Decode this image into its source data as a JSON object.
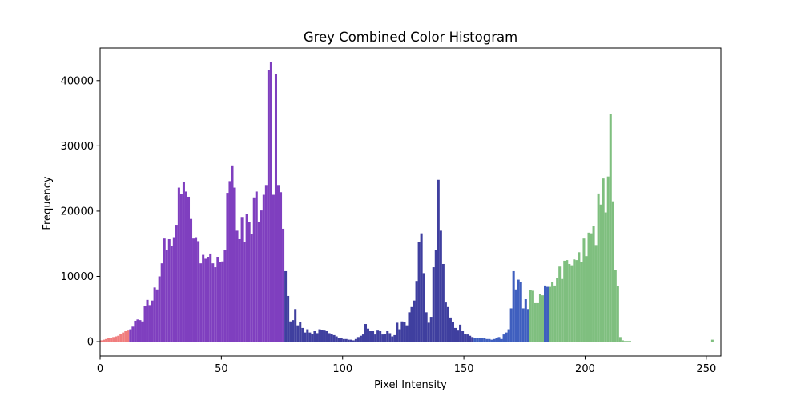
{
  "chart_data": {
    "type": "bar",
    "title": "Grey Combined Color Histogram",
    "xlabel": "Pixel Intensity",
    "ylabel": "Frequency",
    "xlim": [
      0,
      256
    ],
    "ylim": [
      -2200,
      45000
    ],
    "xticks": [
      0,
      50,
      100,
      150,
      200,
      250
    ],
    "yticks": [
      0,
      10000,
      20000,
      30000,
      40000
    ],
    "grid": false,
    "colors": {
      "red": "#f07d7d",
      "purple": "#7f3fbf",
      "navy": "#3f3f9f",
      "blue": "#3f5fbf",
      "green": "#7fbf7f"
    },
    "segments": [
      {
        "start": 0,
        "color": "red",
        "values": [
          200,
          300,
          400,
          500,
          600,
          700,
          800,
          900,
          1200,
          1400,
          1600,
          1700
        ]
      },
      {
        "start": 12,
        "color": "purple",
        "values": [
          1900,
          2300,
          3200,
          3400,
          3300,
          3100,
          5400,
          6400,
          5600,
          6300,
          8300,
          8000,
          10000,
          12000,
          15800,
          14000,
          15700,
          14700,
          16000,
          17900,
          23600,
          22600,
          24500,
          23000,
          22200,
          18800,
          15800,
          16000,
          15400,
          12000,
          13300,
          12700,
          13000,
          13500,
          12000,
          11400,
          13000,
          12200,
          12300,
          14000,
          22800,
          24600,
          27000,
          23600,
          17000,
          15700,
          19100,
          15300,
          19500,
          18300,
          16500,
          22100,
          23000,
          18400,
          20100,
          22500,
          24000,
          41600,
          42800,
          22500,
          41000,
          24000,
          22900,
          17300
        ]
      },
      {
        "start": 76,
        "color": "navy",
        "values": [
          10800,
          7000,
          3100,
          3300,
          5000,
          2500,
          3000,
          2100,
          1400,
          1900,
          1400,
          1200,
          1600,
          1300,
          1900,
          1800,
          1700,
          1600,
          1300,
          1200,
          1000,
          800,
          600,
          500,
          400,
          400,
          300,
          300,
          200,
          400,
          700,
          900,
          1100,
          2700,
          2000,
          1600,
          1600,
          1100,
          1700,
          1600,
          1100,
          1200,
          1600,
          1300,
          800,
          1000,
          2900,
          1900,
          3100,
          3000,
          2500,
          4500,
          5300,
          6300,
          9300,
          15300,
          16600,
          10500,
          4500,
          2900,
          3800,
          11400,
          14100,
          24800,
          17000,
          11900,
          6000,
          5300,
          3700,
          3000,
          2100,
          1700,
          2600,
          1600,
          1200,
          1100,
          900,
          700
        ]
      },
      {
        "start": 154,
        "color": "blue",
        "values": [
          600,
          600,
          500,
          600,
          500,
          400,
          400,
          300,
          400,
          600,
          700,
          400,
          1100,
          1400,
          1900,
          5100,
          10800,
          8000,
          9500,
          9200,
          5100,
          6500,
          5000
        ]
      },
      {
        "start": 177,
        "color": "green",
        "values": [
          7900,
          7800,
          5900,
          5900,
          7300,
          7100
        ]
      },
      {
        "start": 183,
        "color": "blue",
        "values": [
          8600,
          8400
        ]
      },
      {
        "start": 185,
        "color": "green",
        "values": [
          8400,
          9100,
          8600,
          9800,
          11500,
          9600,
          12400,
          12500,
          11900,
          11700,
          12600,
          12500,
          13700,
          12200,
          15800,
          13100,
          16700,
          16600,
          17700,
          14800,
          22700,
          21000,
          25000,
          19800,
          25300,
          34900,
          21500,
          11000,
          8500,
          700,
          200,
          100,
          100,
          100
        ]
      },
      {
        "start": 252,
        "color": "green",
        "values": [
          300
        ]
      }
    ]
  }
}
